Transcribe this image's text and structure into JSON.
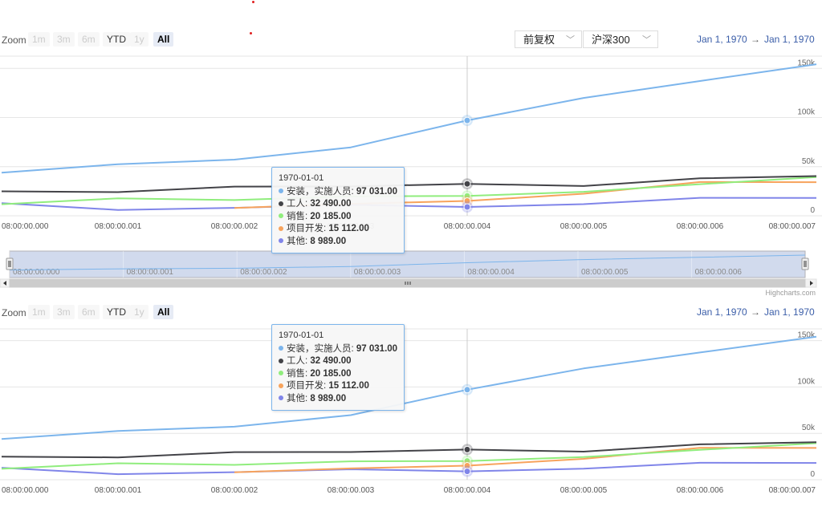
{
  "zoom": {
    "label": "Zoom",
    "buttons": [
      {
        "label": "1m",
        "state": "disabled"
      },
      {
        "label": "3m",
        "state": "disabled"
      },
      {
        "label": "6m",
        "state": "disabled"
      },
      {
        "label": "YTD",
        "state": "enabled"
      },
      {
        "label": "1y",
        "state": "disabled"
      },
      {
        "label": "All",
        "state": "active"
      }
    ]
  },
  "range": {
    "from": "Jan 1, 1970",
    "sep": "→",
    "to": "Jan 1, 1970"
  },
  "selects": {
    "adjust": "前复权",
    "index": "沪深300"
  },
  "credit": "Highcharts.com",
  "tooltip": {
    "date": "1970-01-01",
    "rows": [
      {
        "name": "安装，实施人员",
        "value": "97 031.00",
        "color": "#7cb5ec"
      },
      {
        "name": "工人",
        "value": "32 490.00",
        "color": "#434348"
      },
      {
        "name": "销售",
        "value": "20 185.00",
        "color": "#90ed7d"
      },
      {
        "name": "项目开发",
        "value": "15 112.00",
        "color": "#f7a35c"
      },
      {
        "name": "其他",
        "value": "8 989.00",
        "color": "#8085e9"
      }
    ]
  },
  "chart_data": {
    "type": "line",
    "x": [
      "08:00:00.000",
      "08:00:00.001",
      "08:00:00.002",
      "08:00:00.003",
      "08:00:00.004",
      "08:00:00.005",
      "08:00:00.006",
      "08:00:00.007"
    ],
    "navigator_x": [
      "08:00:00.000",
      "08:00:00.001",
      "08:00:00.002",
      "08:00:00.003",
      "08:00:00.004",
      "08:00:00.005",
      "08:00:00.006"
    ],
    "yticks": [
      "0",
      "50k",
      "100k",
      "150k"
    ],
    "ylim": [
      0,
      160000
    ],
    "highlight_index": 4,
    "series": [
      {
        "name": "安装，实施人员",
        "color": "#7cb5ec",
        "values": [
          43934,
          52503,
          57177,
          69658,
          97031,
          119931,
          137133,
          154175
        ]
      },
      {
        "name": "工人",
        "color": "#434348",
        "values": [
          24916,
          24064,
          29742,
          29851,
          32490,
          30282,
          38121,
          40434
        ]
      },
      {
        "name": "销售",
        "color": "#90ed7d",
        "values": [
          11744,
          17722,
          16005,
          19771,
          20185,
          24377,
          32147,
          39387
        ]
      },
      {
        "name": "项目开发",
        "color": "#f7a35c",
        "values": [
          null,
          null,
          7988,
          12169,
          15112,
          22452,
          34400,
          34227
        ]
      },
      {
        "name": "其他",
        "color": "#8085e9",
        "values": [
          12908,
          5948,
          8105,
          11248,
          8989,
          11816,
          18274,
          18111
        ]
      }
    ]
  }
}
